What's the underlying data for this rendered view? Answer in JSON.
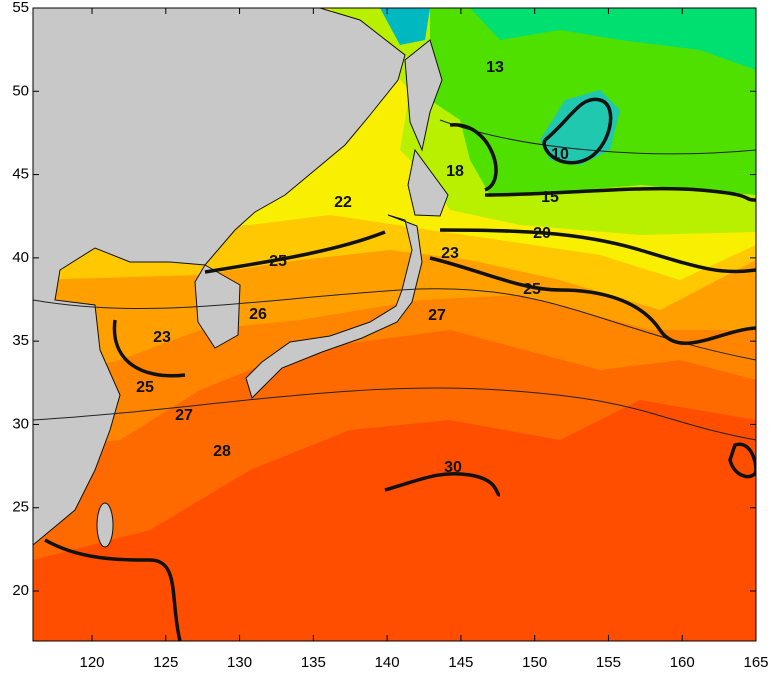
{
  "map": {
    "xlim": [
      116,
      165
    ],
    "ylim": [
      17,
      55
    ],
    "xticks": [
      120,
      125,
      130,
      135,
      140,
      145,
      150,
      155,
      160,
      165
    ],
    "yticks": [
      20,
      25,
      30,
      35,
      40,
      45,
      50,
      55
    ],
    "contour_labels": [
      13,
      10,
      18,
      15,
      22,
      20,
      25,
      23,
      25,
      26,
      27,
      23,
      25,
      27,
      28,
      30
    ]
  }
}
